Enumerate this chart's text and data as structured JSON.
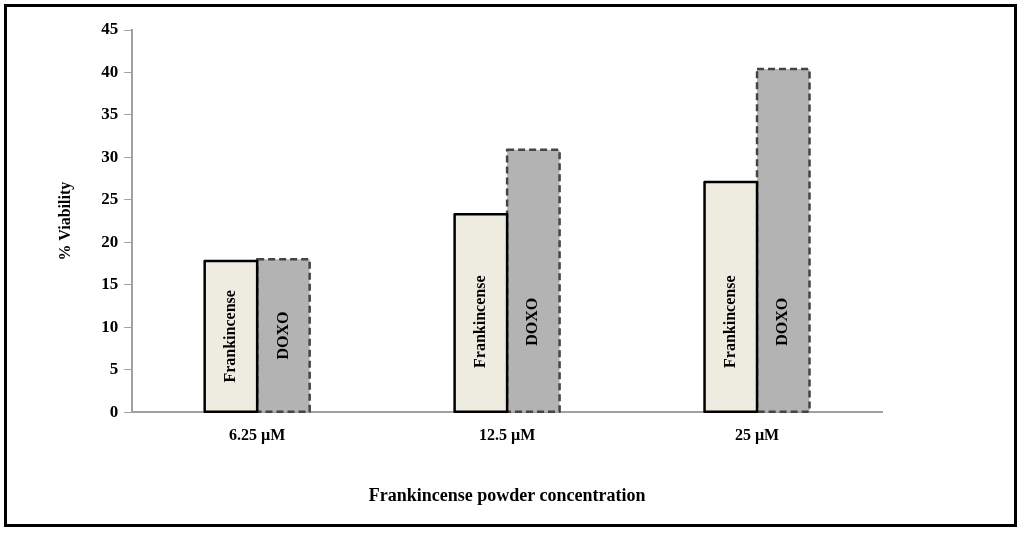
{
  "chart_data": {
    "type": "bar",
    "xlabel": "Frankincense powder concentration",
    "ylabel": "% Viability",
    "categories": [
      "6.25 µM",
      "12.5 µM",
      "25 µM"
    ],
    "series": [
      {
        "name": "Frankincense",
        "color": "#eeebe1",
        "line_style": "solid",
        "values": [
          17.8,
          23.3,
          27.1
        ]
      },
      {
        "name": "DOXO",
        "color": "#b3b3b3",
        "line_style": "dashed",
        "values": [
          18.0,
          30.9,
          40.4
        ]
      }
    ],
    "ylim": [
      0,
      45
    ],
    "yticks": [
      0,
      5,
      10,
      15,
      20,
      25,
      30,
      35,
      40,
      45
    ],
    "grid": false,
    "legend": false
  }
}
